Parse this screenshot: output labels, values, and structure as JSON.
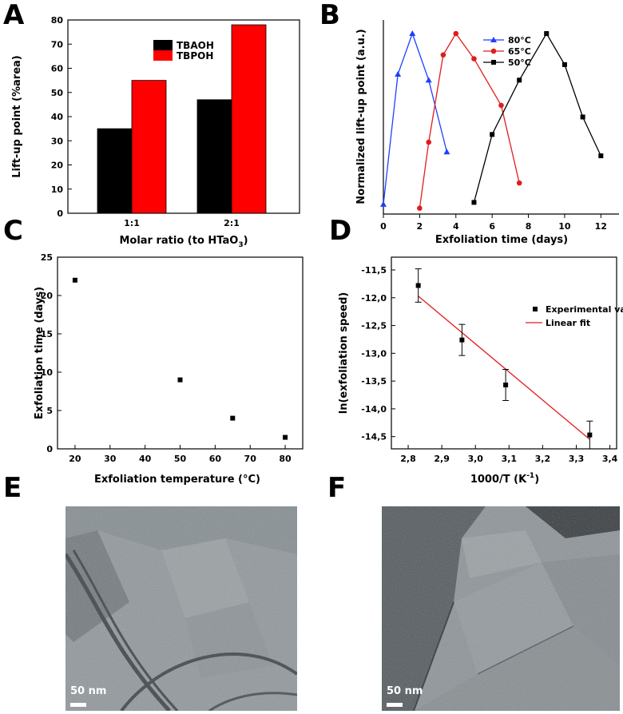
{
  "panels": {
    "A": "A",
    "B": "B",
    "C": "C",
    "D": "D",
    "E": "E",
    "F": "F"
  },
  "colors": {
    "black": "#000000",
    "red": "#ff0000",
    "blue": "#1f3fff",
    "red_series": "#e21c1c"
  },
  "scalebars": {
    "E": "50 nm",
    "F": "50 nm"
  },
  "chart_data": [
    {
      "id": "A",
      "type": "bar",
      "categories": [
        "1:1",
        "2:1"
      ],
      "series": [
        {
          "name": "TBAOH",
          "values": [
            35,
            47
          ]
        },
        {
          "name": "TBPOH",
          "values": [
            55,
            78
          ]
        }
      ],
      "xlabel": "Molar ratio (to HTaO",
      "xlabel_sub": "3",
      "xlabel_end": ")",
      "ylabel": "Lift-up point (%area)",
      "ylim": [
        0,
        80
      ],
      "yticks": [
        "0",
        "10",
        "20",
        "30",
        "40",
        "50",
        "60",
        "70",
        "80"
      ],
      "legend": "top-center"
    },
    {
      "id": "B",
      "type": "line",
      "series": [
        {
          "name": "80°C",
          "marker": "triangle",
          "x": [
            0,
            0.8,
            1.6,
            2.5,
            3.5
          ],
          "y": [
            0.05,
            0.72,
            0.93,
            0.69,
            0.32
          ]
        },
        {
          "name": "65°C",
          "marker": "circle",
          "x": [
            2,
            2.5,
            3.3,
            4,
            5,
            6.5,
            7.5
          ],
          "y": [
            0.03,
            0.37,
            0.82,
            0.93,
            0.8,
            0.56,
            0.16
          ]
        },
        {
          "name": "50°C",
          "marker": "square",
          "x": [
            5,
            6,
            7.5,
            9,
            10,
            11,
            12
          ],
          "y": [
            0.06,
            0.41,
            0.69,
            0.93,
            0.77,
            0.5,
            0.3
          ]
        }
      ],
      "xlabel": "Exfoliation time (days)",
      "ylabel": "Normalized lift-up point (a.u.)",
      "xlim": [
        0,
        13
      ],
      "xticks": [
        "0",
        "2",
        "4",
        "6",
        "8",
        "10",
        "12"
      ],
      "legend": "top-left"
    },
    {
      "id": "C",
      "type": "scatter",
      "x": [
        20,
        50,
        65,
        80
      ],
      "y": [
        22,
        9,
        4,
        1.5
      ],
      "xlabel": "Exfoliation temperature (°C)",
      "ylabel": "Exfoliation time (days)",
      "xlim": [
        15,
        85
      ],
      "ylim": [
        0,
        25
      ],
      "xticks": [
        "20",
        "30",
        "40",
        "50",
        "60",
        "70",
        "80"
      ],
      "yticks": [
        "0",
        "5",
        "10",
        "15",
        "20",
        "25"
      ]
    },
    {
      "id": "D",
      "type": "scatter",
      "x": [
        2.83,
        2.96,
        3.09,
        3.34
      ],
      "y": [
        -11.78,
        -12.76,
        -13.57,
        -14.47
      ],
      "yerr": [
        0.3,
        0.28,
        0.28,
        0.25
      ],
      "fit": {
        "x": [
          2.83,
          3.34
        ],
        "y": [
          -11.97,
          -14.55
        ]
      },
      "legend_entries": [
        "Experimental values",
        "Linear fit"
      ],
      "xlabel": "1000/T (K",
      "xlabel_sup": "-1",
      "xlabel_end": ")",
      "ylabel": "ln(exfoliation speed)",
      "xlim": [
        2.75,
        3.42
      ],
      "ylim": [
        -14.72,
        -11.27
      ],
      "xticks": [
        "2,8",
        "2,9",
        "3,0",
        "3,1",
        "3,2",
        "3,3",
        "3,4"
      ],
      "yticks": [
        "-11,5",
        "-12,0",
        "-12,5",
        "-13,0",
        "-13,5",
        "-14,0",
        "-14,5"
      ]
    }
  ]
}
